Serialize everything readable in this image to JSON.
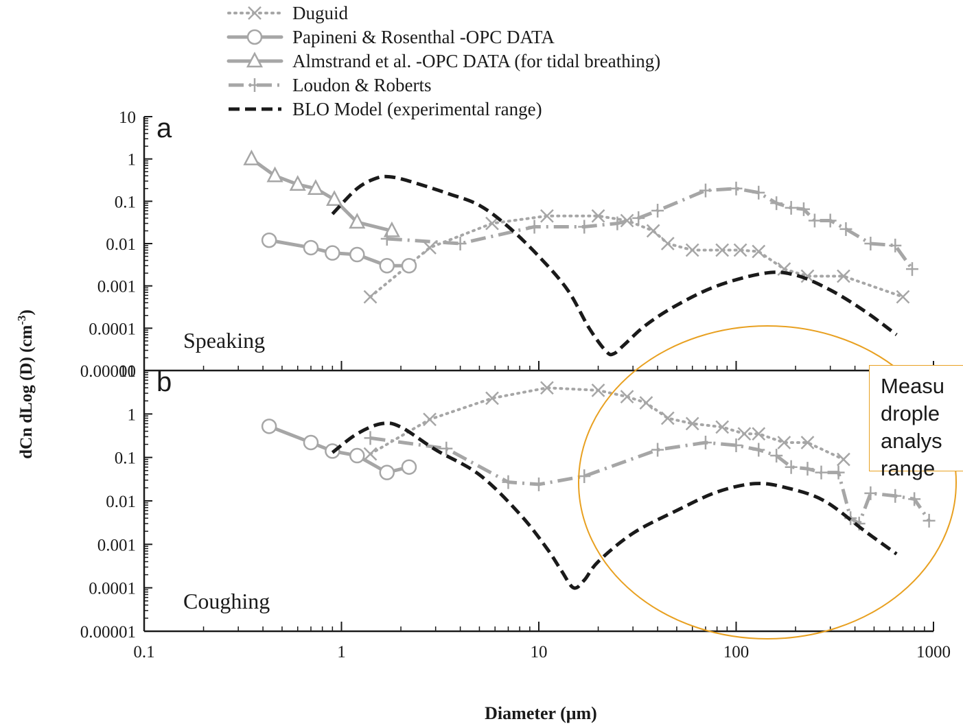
{
  "legend": [
    {
      "label": "Duguid",
      "style": "dotted-x"
    },
    {
      "label": "Papineni & Rosenthal -OPC DATA",
      "style": "solid-circle"
    },
    {
      "label": "Almstrand et al. -OPC DATA (for tidal breathing)",
      "style": "solid-triangle"
    },
    {
      "label": "Loudon & Roberts",
      "style": "dashdot-plus"
    },
    {
      "label": "BLO Model (experimental range)",
      "style": "dashed-black"
    }
  ],
  "colors": {
    "series_gray": "#a6a6a6",
    "model": "#1a1a1a",
    "highlight": "#e8a020"
  },
  "callout": {
    "lines": [
      "Measu",
      "drople",
      "analys",
      "range"
    ]
  },
  "chart_data": [
    {
      "type": "line",
      "panel_label": "a",
      "annotation": "Speaking",
      "title": "",
      "xlabel": "Diameter (μm)",
      "ylabel": "dCn dLog (D) (cm-3)",
      "xscale": "log",
      "yscale": "log",
      "xlim": [
        0.1,
        1000
      ],
      "ylim": [
        1e-05,
        10
      ],
      "y_ticks": [
        "10",
        "1",
        "0.1",
        "0.01",
        "0.001",
        "0.0001",
        "0.00001"
      ],
      "series": [
        {
          "name": "Duguid",
          "x": [
            1.4,
            2.8,
            5.8,
            11,
            20,
            28,
            38,
            45,
            60,
            85,
            105,
            130,
            175,
            230,
            350,
            700
          ],
          "y": [
            0.00055,
            0.008,
            0.03,
            0.045,
            0.045,
            0.035,
            0.02,
            0.01,
            0.007,
            0.007,
            0.007,
            0.0065,
            0.0025,
            0.0017,
            0.0017,
            0.00055
          ]
        },
        {
          "name": "Papineni & Rosenthal -OPC DATA",
          "x": [
            0.43,
            0.7,
            0.9,
            1.2,
            1.7,
            2.2
          ],
          "y": [
            0.012,
            0.008,
            0.006,
            0.0055,
            0.003,
            0.003
          ]
        },
        {
          "name": "Almstrand et al. -OPC DATA (for tidal breathing)",
          "x": [
            0.35,
            0.46,
            0.6,
            0.74,
            0.92,
            1.2,
            1.8
          ],
          "y": [
            1.0,
            0.4,
            0.25,
            0.2,
            0.11,
            0.032,
            0.02
          ]
        },
        {
          "name": "Loudon & Roberts",
          "x": [
            1.7,
            4.0,
            9.5,
            17,
            25,
            32,
            40,
            70,
            100,
            130,
            160,
            190,
            220,
            250,
            300,
            360,
            480,
            640,
            780
          ],
          "y": [
            0.013,
            0.01,
            0.025,
            0.025,
            0.03,
            0.04,
            0.06,
            0.18,
            0.2,
            0.16,
            0.09,
            0.07,
            0.065,
            0.035,
            0.035,
            0.022,
            0.01,
            0.009,
            0.0025
          ]
        },
        {
          "name": "BLO Model (experimental range)",
          "x": [
            0.9,
            1.2,
            1.5,
            1.75,
            2.2,
            3.5,
            5.0,
            7.0,
            10,
            14,
            18,
            22,
            24,
            27,
            35,
            50,
            80,
            140,
            200,
            300,
            450,
            650
          ],
          "y": [
            0.05,
            0.2,
            0.35,
            0.38,
            0.3,
            0.15,
            0.08,
            0.025,
            0.005,
            0.0008,
            0.0001,
            2.8e-05,
            2.5e-05,
            4e-05,
            0.00012,
            0.00035,
            0.001,
            0.002,
            0.0018,
            0.0008,
            0.00025,
            7e-05
          ]
        }
      ]
    },
    {
      "type": "line",
      "panel_label": "b",
      "annotation": "Coughing",
      "title": "",
      "xlabel": "Diameter (μm)",
      "ylabel": "dCn dLog (D) (cm-3)",
      "xscale": "log",
      "yscale": "log",
      "xlim": [
        0.1,
        1000
      ],
      "ylim": [
        1e-05,
        10
      ],
      "y_ticks": [
        "10",
        "1",
        "0.1",
        "0.01",
        "0.001",
        "0.0001",
        "0.00001"
      ],
      "x_ticks": [
        "0.1",
        "1",
        "10",
        "100",
        "1000"
      ],
      "series": [
        {
          "name": "Duguid",
          "x": [
            1.4,
            2.8,
            5.8,
            11,
            20,
            28,
            35,
            45,
            60,
            85,
            110,
            130,
            175,
            230,
            350
          ],
          "y": [
            0.12,
            0.75,
            2.3,
            4.0,
            3.5,
            2.5,
            1.8,
            0.8,
            0.6,
            0.5,
            0.35,
            0.35,
            0.22,
            0.22,
            0.09
          ]
        },
        {
          "name": "Papineni & Rosenthal -OPC DATA",
          "x": [
            0.43,
            0.7,
            0.9,
            1.2,
            1.7,
            2.2
          ],
          "y": [
            0.52,
            0.22,
            0.14,
            0.11,
            0.045,
            0.06
          ]
        },
        {
          "name": "Loudon & Roberts",
          "x": [
            1.4,
            3.4,
            7.0,
            10,
            17,
            40,
            70,
            100,
            130,
            160,
            190,
            230,
            270,
            330,
            380,
            420,
            480,
            640,
            800,
            950
          ],
          "y": [
            0.28,
            0.16,
            0.027,
            0.024,
            0.037,
            0.15,
            0.22,
            0.19,
            0.15,
            0.11,
            0.06,
            0.055,
            0.045,
            0.045,
            0.004,
            0.003,
            0.015,
            0.013,
            0.011,
            0.0035
          ]
        },
        {
          "name": "BLO Model (experimental range)",
          "x": [
            0.9,
            1.2,
            1.6,
            2.0,
            3.0,
            5.0,
            8.0,
            11,
            13,
            15,
            17,
            20,
            30,
            50,
            80,
            125,
            180,
            280,
            450,
            650
          ],
          "y": [
            0.13,
            0.35,
            0.6,
            0.5,
            0.15,
            0.04,
            0.005,
            0.0008,
            0.00025,
            0.0001,
            0.00015,
            0.0004,
            0.0018,
            0.006,
            0.016,
            0.025,
            0.02,
            0.01,
            0.002,
            0.0006
          ]
        }
      ]
    }
  ]
}
